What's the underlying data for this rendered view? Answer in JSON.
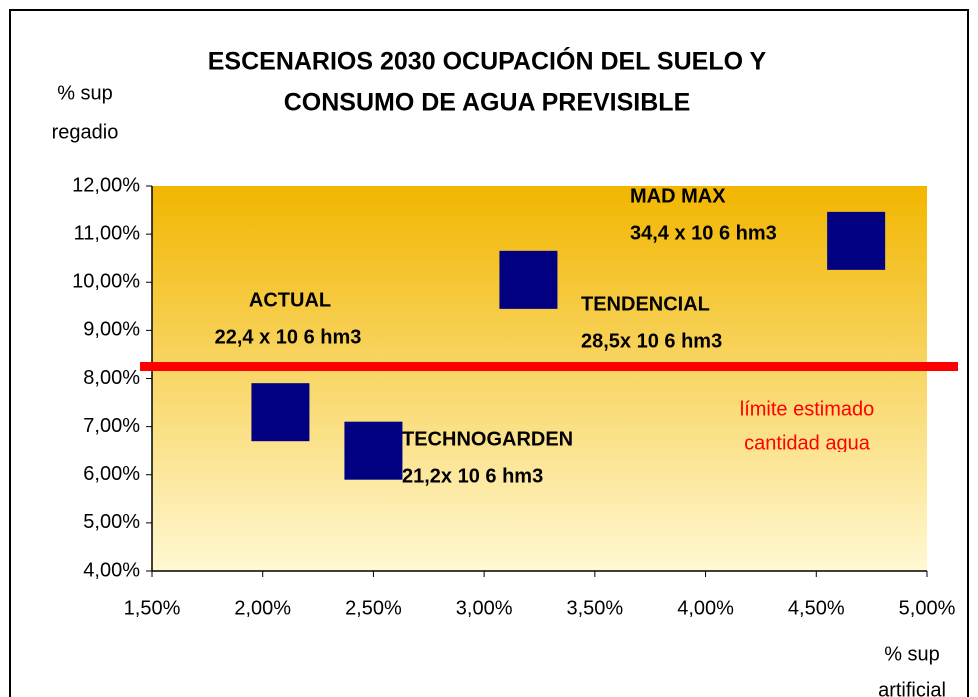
{
  "chart_data": {
    "type": "scatter",
    "title": [
      "ESCENARIOS 2030 OCUPACIÓN DEL SUELO Y",
      "CONSUMO DE AGUA PREVISIBLE"
    ],
    "y_label": [
      "% sup",
      "regadio"
    ],
    "x_label": [
      "% sup",
      "artificial"
    ],
    "xlim": [
      1.5,
      5.0
    ],
    "ylim": [
      4,
      12
    ],
    "xticks": [
      {
        "value": 1.5,
        "label": "1,50%"
      },
      {
        "value": 2.0,
        "label": "2,00%"
      },
      {
        "value": 2.5,
        "label": "2,50%"
      },
      {
        "value": 3.0,
        "label": "3,00%"
      },
      {
        "value": 3.5,
        "label": "3,50%"
      },
      {
        "value": 4.0,
        "label": "4,00%"
      },
      {
        "value": 4.5,
        "label": "4,50%"
      },
      {
        "value": 5.0,
        "label": "5,00%"
      }
    ],
    "yticks": [
      {
        "value": 4,
        "label": "4,00%"
      },
      {
        "value": 5,
        "label": "5,00%"
      },
      {
        "value": 6,
        "label": "6,00%"
      },
      {
        "value": 7,
        "label": "7,00%"
      },
      {
        "value": 8,
        "label": "8,00%"
      },
      {
        "value": 9,
        "label": "9,00%"
      },
      {
        "value": 10,
        "label": "10,00%"
      },
      {
        "value": 11,
        "label": "11,00%"
      },
      {
        "value": 12,
        "label": "12,00%"
      }
    ],
    "series": [
      {
        "color": "#000080",
        "x": [
          2.08,
          2.5,
          3.2,
          4.68
        ],
        "values": [
          7.3,
          6.5,
          10.05,
          10.86
        ]
      }
    ],
    "annotations": [
      [
        "ACTUAL",
        "22,4 x 10 6 hm3"
      ],
      [
        "TECHNOGARDEN",
        "21,2x 10 6 hm3"
      ],
      [
        "TENDENCIAL",
        "28,5x 10 6 hm3"
      ],
      [
        "MAD MAX",
        "34,4 x 10 6 hm3"
      ]
    ],
    "threshold": {
      "value": 8.25,
      "color": "#ff0000",
      "label": [
        "límite estimado",
        "cantidad agua"
      ]
    }
  }
}
